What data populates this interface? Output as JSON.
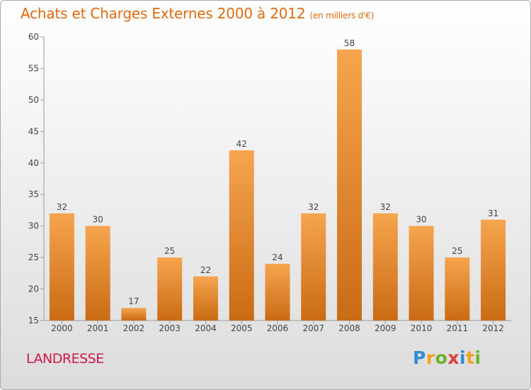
{
  "header": {
    "title": "Achats et Charges Externes 2000 à 2012",
    "subtitle": "(en milliers d'€)"
  },
  "footer": {
    "town": "LANDRESSE",
    "brand": "Proxiti"
  },
  "colors": {
    "bar_top": "#f6a54e",
    "bar_bottom": "#c96b14",
    "title": "#e06a10",
    "town": "#d0194a"
  },
  "chart_data": {
    "type": "bar",
    "categories": [
      "2000",
      "2001",
      "2002",
      "2003",
      "2004",
      "2005",
      "2006",
      "2007",
      "2008",
      "2009",
      "2010",
      "2011",
      "2012"
    ],
    "values": [
      32,
      30,
      17,
      25,
      22,
      42,
      24,
      32,
      58,
      32,
      30,
      25,
      31
    ],
    "title": "Achats et Charges Externes 2000 à 2012",
    "subtitle": "(en milliers d'€)",
    "xlabel": "",
    "ylabel": "",
    "ylim": [
      15,
      60
    ],
    "yticks": [
      15,
      20,
      25,
      30,
      35,
      40,
      45,
      50,
      55,
      60
    ],
    "grid": false,
    "legend": "none"
  }
}
